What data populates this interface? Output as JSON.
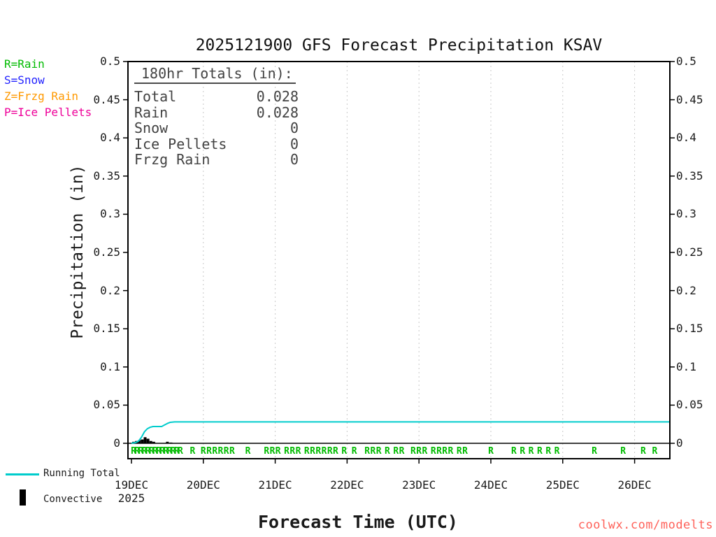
{
  "title": "2025121900 GFS Forecast Precipitation KSAV",
  "precip_type_legend": [
    {
      "label": "R=Rain",
      "color": "#00bb00"
    },
    {
      "label": "S=Snow",
      "color": "#2222ff"
    },
    {
      "label": "Z=Frzg Rain",
      "color": "#ff9900"
    },
    {
      "label": "P=Ice Pellets",
      "color": "#ee0099"
    }
  ],
  "totals_box": {
    "heading": "180hr Totals (in):",
    "rows": [
      {
        "label": "Total",
        "value": "0.028"
      },
      {
        "label": "Rain",
        "value": "0.028"
      },
      {
        "label": "Snow",
        "value": "0"
      },
      {
        "label": "Ice Pellets",
        "value": "0"
      },
      {
        "label": "Frzg Rain",
        "value": "0"
      }
    ]
  },
  "axes": {
    "ylabel": "Precipitation (in)",
    "xlabel": "Forecast Time (UTC)"
  },
  "bottom_legend": {
    "running_total": "Running Total",
    "convective": "Convective"
  },
  "watermark": {
    "text": "coolwx.com/modelts",
    "color": "#ff6159"
  },
  "chart_data": {
    "type": "line",
    "title": "2025121900 GFS Forecast Precipitation KSAV",
    "xlabel": "Forecast Time (UTC)",
    "ylabel": "Precipitation (in)",
    "ylim": [
      -0.02,
      0.5
    ],
    "x_span_days": 7.5,
    "grid": "vertical-dotted",
    "ytick_values": [
      0,
      0.05,
      0.1,
      0.15,
      0.2,
      0.25,
      0.3,
      0.35,
      0.4,
      0.45,
      0.5
    ],
    "ytick_labels": [
      "0",
      "0.05",
      "0.1",
      "0.15",
      "0.2",
      "0.25",
      "0.3",
      "0.35",
      "0.4",
      "0.45",
      "0.5"
    ],
    "xticks": [
      {
        "day": 0,
        "label": "19DEC",
        "sublabel": "2025"
      },
      {
        "day": 1,
        "label": "20DEC"
      },
      {
        "day": 2,
        "label": "21DEC"
      },
      {
        "day": 3,
        "label": "22DEC"
      },
      {
        "day": 4,
        "label": "23DEC"
      },
      {
        "day": 5,
        "label": "24DEC"
      },
      {
        "day": 6,
        "label": "25DEC"
      },
      {
        "day": 7,
        "label": "26DEC"
      }
    ],
    "series": [
      {
        "name": "Running Total",
        "color": "#00cccc",
        "points": [
          [
            0.0,
            0.0
          ],
          [
            0.06,
            0.001
          ],
          [
            0.1,
            0.003
          ],
          [
            0.14,
            0.008
          ],
          [
            0.18,
            0.015
          ],
          [
            0.22,
            0.019
          ],
          [
            0.26,
            0.021
          ],
          [
            0.3,
            0.022
          ],
          [
            0.42,
            0.022
          ],
          [
            0.46,
            0.024
          ],
          [
            0.5,
            0.026
          ],
          [
            0.54,
            0.0275
          ],
          [
            0.6,
            0.028
          ],
          [
            7.5,
            0.028
          ]
        ]
      }
    ],
    "convective_bars": {
      "name": "Convective",
      "color": "#000000",
      "points": [
        [
          0.03,
          0.002
        ],
        [
          0.07,
          0.003
        ],
        [
          0.11,
          0.004
        ],
        [
          0.15,
          0.005
        ],
        [
          0.19,
          0.008
        ],
        [
          0.23,
          0.006
        ],
        [
          0.27,
          0.003
        ],
        [
          0.31,
          0.002
        ],
        [
          0.5,
          0.002
        ],
        [
          0.55,
          0.001
        ]
      ]
    },
    "rain_markers": {
      "symbol": "R",
      "color": "#00bb00",
      "value": -0.009,
      "days": [
        0.03,
        0.08,
        0.13,
        0.18,
        0.23,
        0.28,
        0.33,
        0.38,
        0.43,
        0.48,
        0.53,
        0.58,
        0.63,
        0.68,
        0.85,
        1.0,
        1.08,
        1.16,
        1.24,
        1.32,
        1.4,
        1.62,
        1.88,
        1.96,
        2.04,
        2.16,
        2.24,
        2.32,
        2.44,
        2.52,
        2.6,
        2.68,
        2.76,
        2.84,
        2.96,
        3.1,
        3.28,
        3.36,
        3.44,
        3.56,
        3.68,
        3.76,
        3.92,
        4.0,
        4.08,
        4.2,
        4.28,
        4.36,
        4.44,
        4.56,
        4.64,
        5.0,
        5.32,
        5.44,
        5.56,
        5.68,
        5.8,
        5.92,
        6.44,
        6.84,
        7.12,
        7.28
      ]
    }
  }
}
